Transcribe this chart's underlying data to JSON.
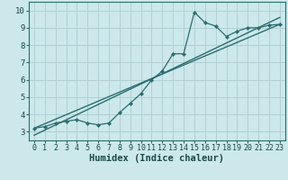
{
  "xlabel": "Humidex (Indice chaleur)",
  "xlim": [
    -0.5,
    23.5
  ],
  "ylim": [
    2.5,
    10.5
  ],
  "xticks": [
    0,
    1,
    2,
    3,
    4,
    5,
    6,
    7,
    8,
    9,
    10,
    11,
    12,
    13,
    14,
    15,
    16,
    17,
    18,
    19,
    20,
    21,
    22,
    23
  ],
  "yticks": [
    3,
    4,
    5,
    6,
    7,
    8,
    9,
    10
  ],
  "bg_color": "#cce8ea",
  "grid_color": "#b0d0d4",
  "line_color": "#2a6e6e",
  "line1_x": [
    0,
    1,
    2,
    3,
    4,
    5,
    6,
    7,
    8,
    9,
    10,
    11,
    12,
    13,
    14,
    15,
    16,
    17,
    18,
    19,
    20,
    21,
    22,
    23
  ],
  "line1_y": [
    3.2,
    3.3,
    3.5,
    3.6,
    3.7,
    3.5,
    3.4,
    3.5,
    4.1,
    4.65,
    5.2,
    6.0,
    6.5,
    7.5,
    7.5,
    9.9,
    9.3,
    9.1,
    8.5,
    8.8,
    9.0,
    9.0,
    9.15,
    9.2
  ],
  "line2_x": [
    0,
    23
  ],
  "line2_y": [
    3.2,
    9.2
  ],
  "line3_x": [
    0,
    23
  ],
  "line3_y": [
    2.8,
    9.6
  ],
  "tick_fontsize": 6.5,
  "xlabel_fontsize": 7.5
}
